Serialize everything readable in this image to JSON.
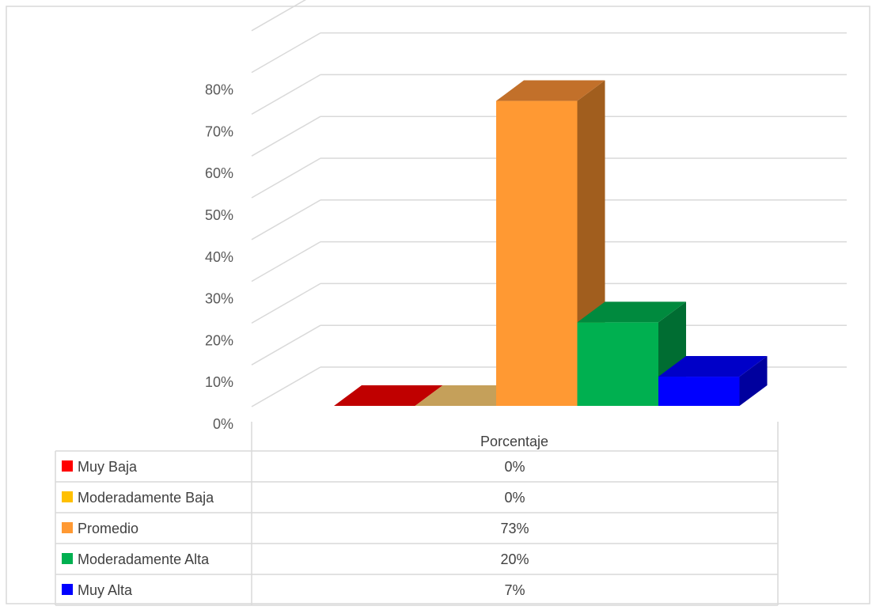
{
  "chart_data": {
    "type": "bar",
    "categories": [
      "Porcentaje"
    ],
    "ylim": [
      0,
      80
    ],
    "yticks": [
      "0%",
      "10%",
      "20%",
      "30%",
      "40%",
      "50%",
      "60%",
      "70%",
      "80%"
    ],
    "grid": true,
    "legend": "data-table-bottom",
    "series": [
      {
        "name": "Muy Baja",
        "values": [
          0
        ],
        "label": "0%",
        "color": "#ff0000",
        "side_color": "#a00000",
        "top_color": "#c00000"
      },
      {
        "name": "Moderadamente Baja",
        "values": [
          0
        ],
        "label": "0%",
        "color": "#ffc000",
        "side_color": "#a3864a",
        "top_color": "#c5a05a"
      },
      {
        "name": "Promedio",
        "values": [
          73
        ],
        "label": "73%",
        "color": "#ff9933",
        "side_color": "#a15e1e",
        "top_color": "#c2702a"
      },
      {
        "name": "Moderadamente Alta",
        "values": [
          20
        ],
        "label": "20%",
        "color": "#00b050",
        "side_color": "#006d32",
        "top_color": "#008a3e"
      },
      {
        "name": "Muy Alta",
        "values": [
          7
        ],
        "label": "7%",
        "color": "#0000ff",
        "side_color": "#00009e",
        "top_color": "#0000c8"
      }
    ]
  }
}
